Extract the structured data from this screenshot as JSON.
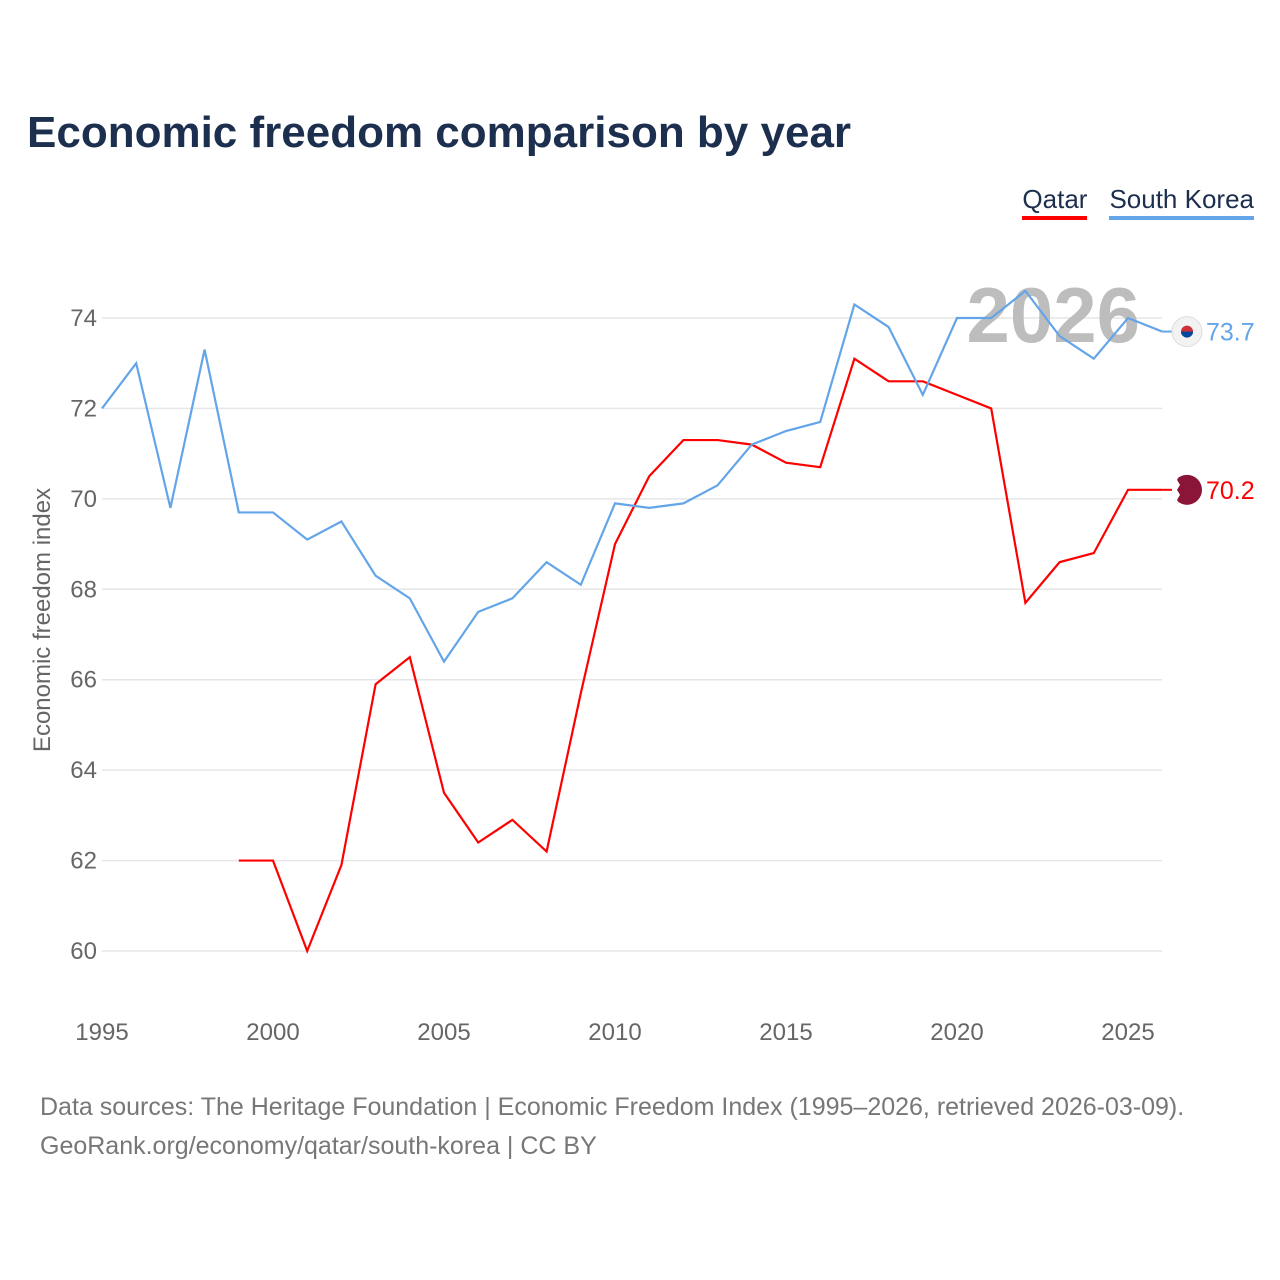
{
  "chart_data": {
    "type": "line",
    "title": "Economic freedom comparison by year",
    "xlabel": "",
    "ylabel": "Economic freedom index",
    "xlim": [
      1995,
      2026
    ],
    "ylim": [
      59,
      75.5
    ],
    "xticks": [
      1995,
      2000,
      2005,
      2010,
      2015,
      2020,
      2025
    ],
    "yticks": [
      60,
      62,
      64,
      66,
      68,
      70,
      72,
      74
    ],
    "grid": true,
    "legend_position": "top-right",
    "watermark_year": "2026",
    "series": [
      {
        "name": "Qatar",
        "color": "#ff0000",
        "end_label": "70.2",
        "x": [
          1999,
          2000,
          2001,
          2002,
          2003,
          2004,
          2005,
          2006,
          2007,
          2008,
          2009,
          2010,
          2011,
          2012,
          2013,
          2014,
          2015,
          2016,
          2017,
          2018,
          2019,
          2020,
          2021,
          2022,
          2023,
          2024,
          2025,
          2026
        ],
        "y": [
          62.0,
          62.0,
          60.0,
          61.9,
          65.9,
          66.5,
          63.5,
          62.4,
          62.9,
          62.2,
          65.7,
          69.0,
          70.5,
          71.3,
          71.3,
          71.2,
          70.8,
          70.7,
          73.1,
          72.6,
          72.6,
          72.3,
          72.0,
          67.7,
          68.6,
          68.8,
          70.2,
          70.2
        ]
      },
      {
        "name": "South Korea",
        "color": "#63a5e8",
        "end_label": "73.7",
        "x": [
          1995,
          1996,
          1997,
          1998,
          1999,
          2000,
          2001,
          2002,
          2003,
          2004,
          2005,
          2006,
          2007,
          2008,
          2009,
          2010,
          2011,
          2012,
          2013,
          2014,
          2015,
          2016,
          2017,
          2018,
          2019,
          2020,
          2021,
          2022,
          2023,
          2024,
          2025,
          2026
        ],
        "y": [
          72.0,
          73.0,
          69.8,
          73.3,
          69.7,
          69.7,
          69.1,
          69.5,
          68.3,
          67.8,
          66.4,
          67.5,
          67.8,
          68.6,
          68.1,
          69.9,
          69.8,
          69.9,
          70.3,
          71.2,
          71.5,
          71.7,
          74.3,
          73.8,
          72.3,
          74.0,
          74.0,
          74.6,
          73.6,
          73.1,
          74.0,
          73.7
        ]
      }
    ]
  },
  "footer": {
    "line1": "Data sources: The Heritage Foundation | Economic Freedom Index (1995–2026, retrieved 2026-03-09).",
    "line2": "GeoRank.org/economy/qatar/south-korea | CC BY"
  }
}
